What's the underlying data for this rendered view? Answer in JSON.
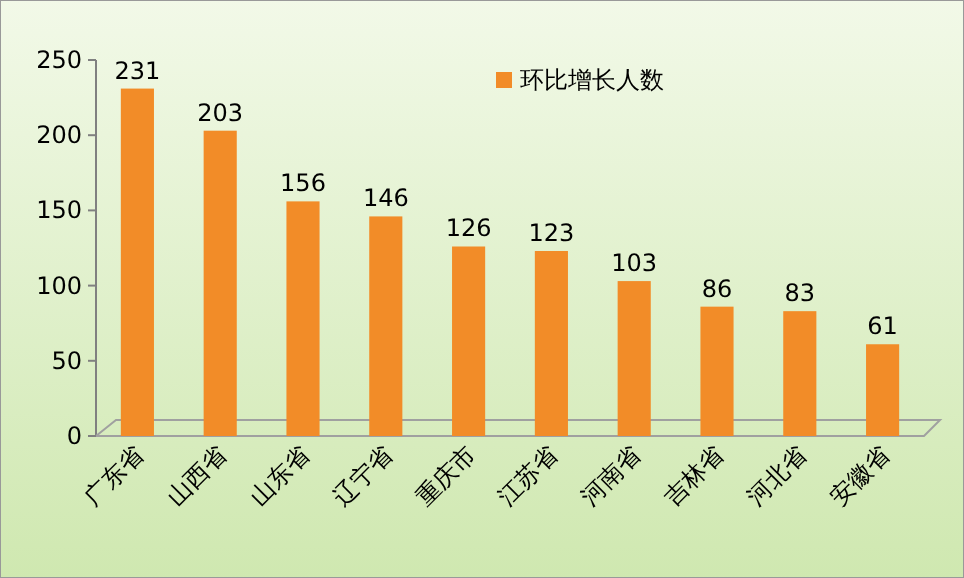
{
  "chart_data": {
    "type": "bar",
    "categories": [
      "广东省",
      "山西省",
      "山东省",
      "辽宁省",
      "重庆市",
      "江苏省",
      "河南省",
      "吉林省",
      "河北省",
      "安徽省"
    ],
    "series": [
      {
        "name": "环比增长人数",
        "color": "#f28c28",
        "values": [
          231,
          203,
          156,
          146,
          126,
          123,
          103,
          86,
          83,
          61
        ]
      }
    ],
    "ylim": [
      0,
      250
    ],
    "yticks": [
      0,
      50,
      100,
      150,
      200,
      250
    ],
    "data_labels": true,
    "legend": "top right",
    "grid": false
  }
}
